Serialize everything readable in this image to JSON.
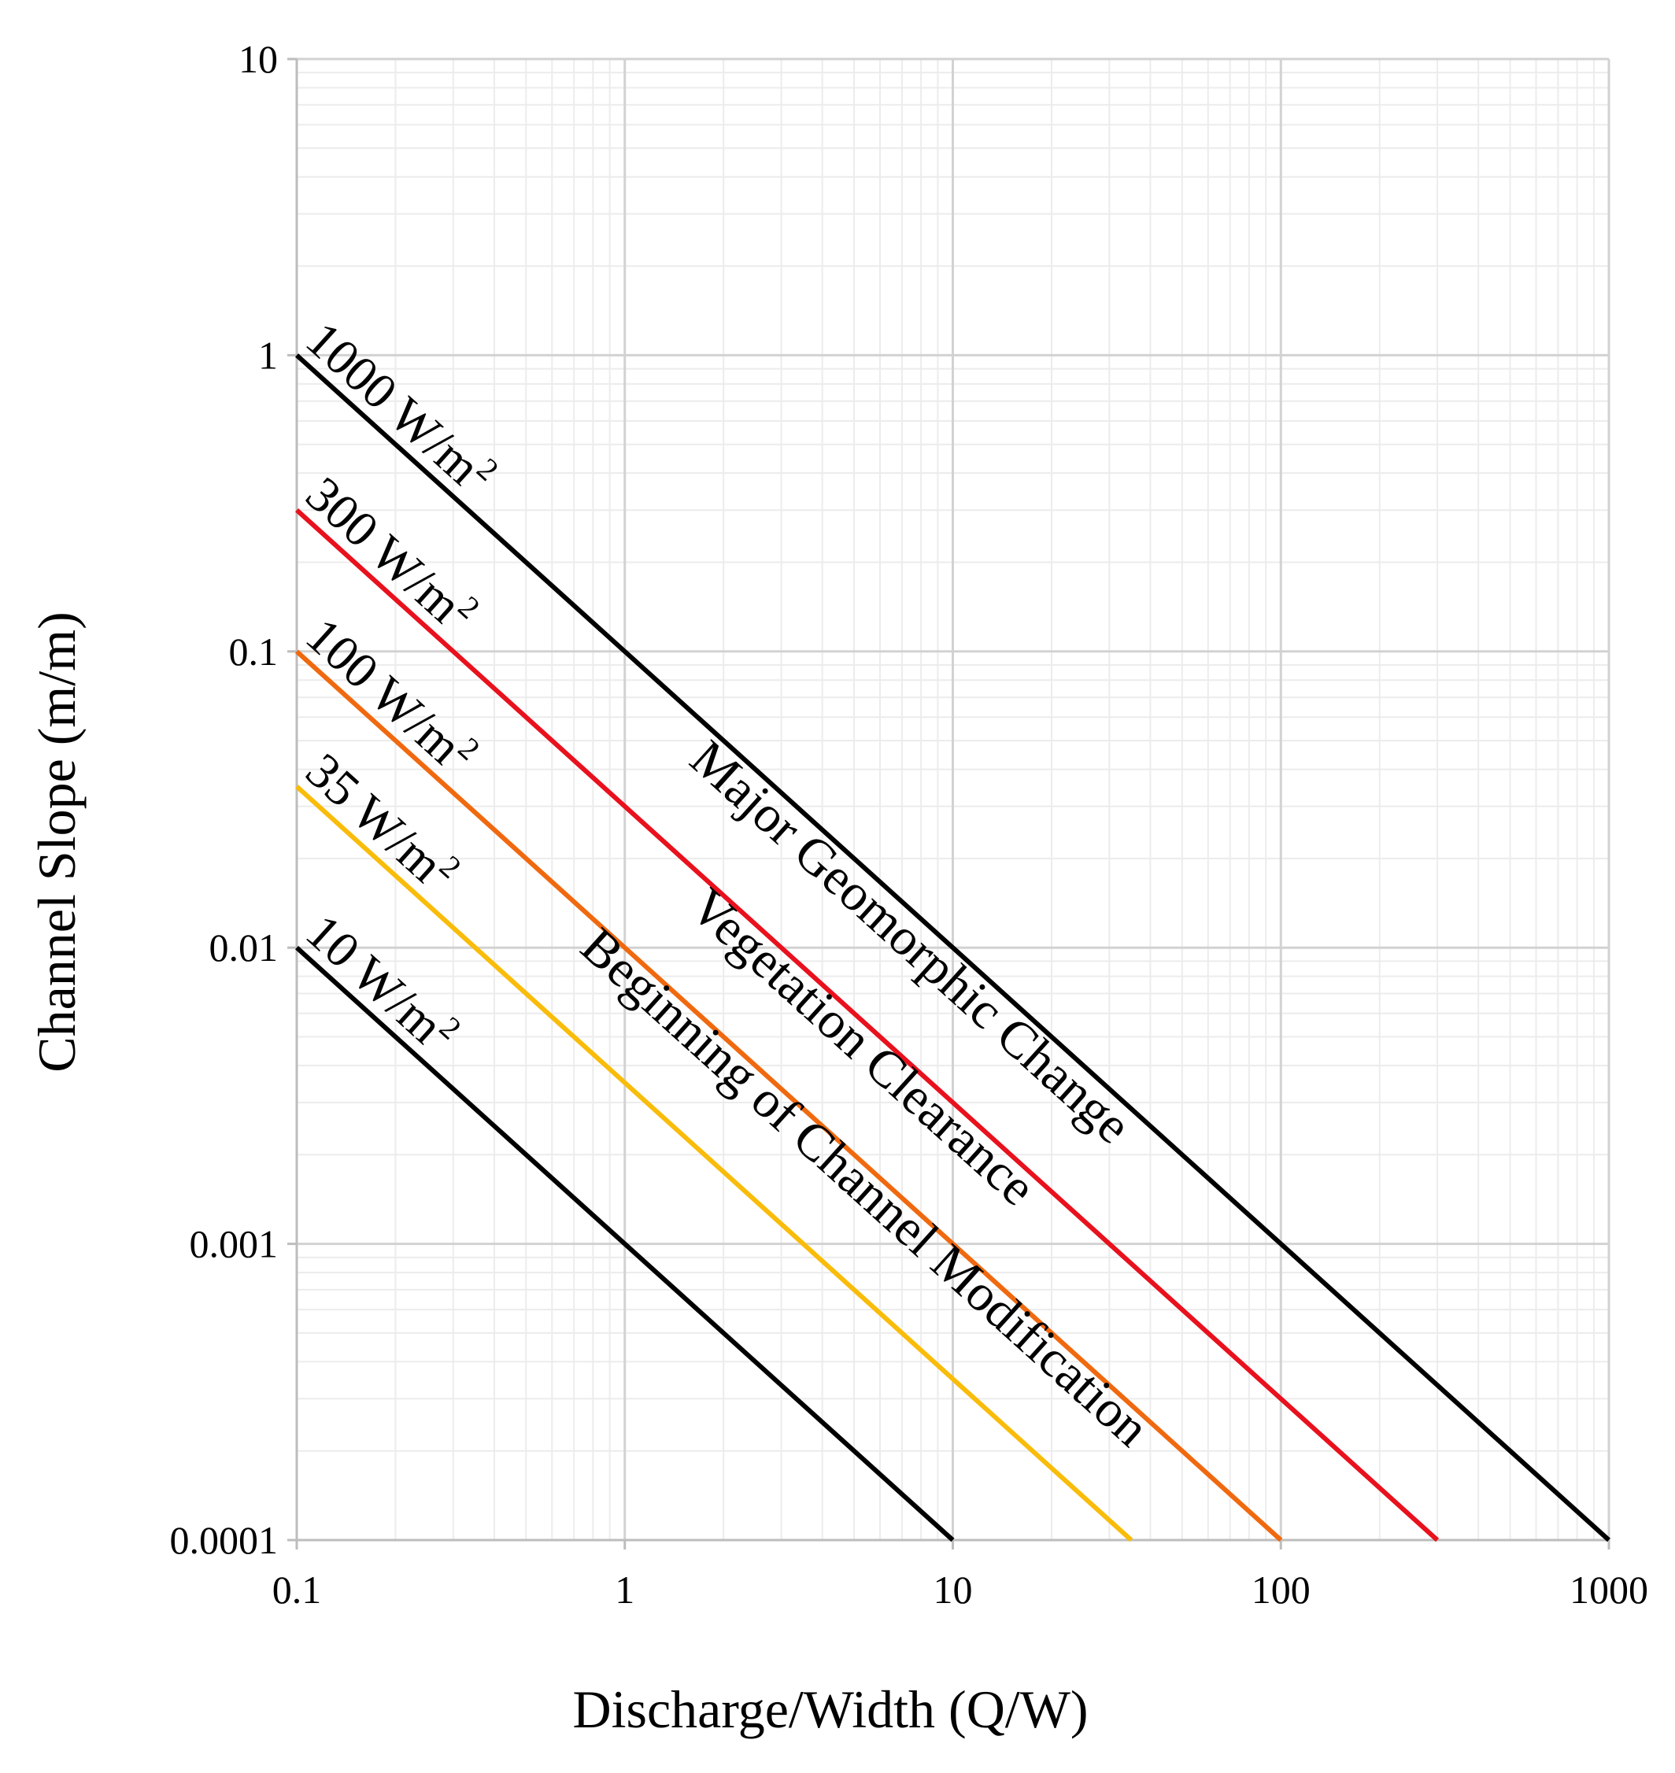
{
  "chart_data": {
    "type": "line",
    "title": "",
    "xlabel": "Discharge/Width (Q/W)",
    "ylabel": "Channel Slope (m/m)",
    "xscale": "log",
    "yscale": "log",
    "xlim": [
      0.1,
      1000
    ],
    "ylim": [
      0.0001,
      10
    ],
    "xticks": [
      0.1,
      1,
      10,
      100,
      1000
    ],
    "xtick_labels": [
      "0.1",
      "1",
      "10",
      "100",
      "1000"
    ],
    "yticks": [
      0.0001,
      0.001,
      0.01,
      0.1,
      1,
      10
    ],
    "ytick_labels": [
      "0.0001",
      "0.001",
      "0.01",
      "0.1",
      "1",
      "10"
    ],
    "grid": true,
    "series": [
      {
        "name": "1000 W/m",
        "sup": "2",
        "power": 1000,
        "color": "#000000",
        "x": [
          0.1,
          1000
        ],
        "y": [
          1,
          0.0001
        ]
      },
      {
        "name": "300 W/m",
        "sup": "2",
        "power": 300,
        "color": "#e8111d",
        "x": [
          0.1,
          300
        ],
        "y": [
          0.3,
          0.0001
        ]
      },
      {
        "name": "100 W/m",
        "sup": "2",
        "power": 100,
        "color": "#f0690f",
        "x": [
          0.1,
          100
        ],
        "y": [
          0.1,
          0.0001
        ]
      },
      {
        "name": "35 W/m",
        "sup": "2",
        "power": 35,
        "color": "#f9bc0a",
        "x": [
          0.1,
          35
        ],
        "y": [
          0.035,
          0.0001
        ]
      },
      {
        "name": "10 W/m",
        "sup": "2",
        "power": 10,
        "color": "#000000",
        "x": [
          0.1,
          10
        ],
        "y": [
          0.01,
          0.0001
        ]
      }
    ],
    "annotations": [
      {
        "text": "Major Geomorphic Change",
        "between": [
          "300 W/m",
          "1000 W/m"
        ]
      },
      {
        "text": "Vegetation Clearance",
        "between": [
          "100 W/m",
          "300 W/m"
        ]
      },
      {
        "text": "Beginning of Channel Modification",
        "between": [
          "35 W/m",
          "100 W/m"
        ]
      }
    ]
  }
}
